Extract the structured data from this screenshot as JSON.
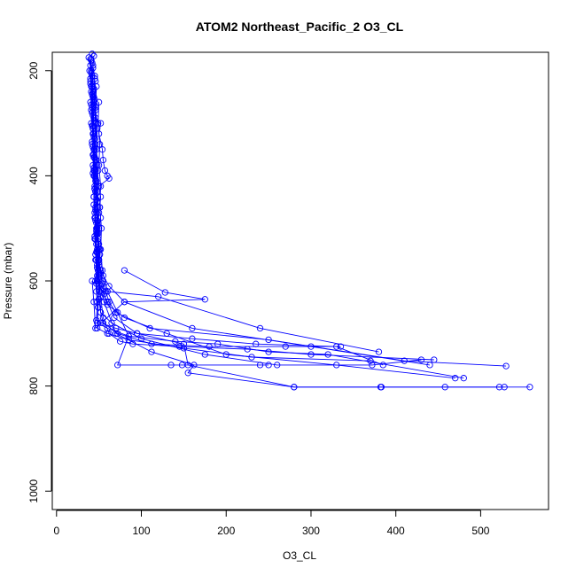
{
  "chart_data": {
    "type": "line",
    "title": "ATOM2 Northeast_Pacific_2 O3_CL",
    "xlabel": "O3_CL",
    "ylabel": "Pressure (mbar)",
    "xlim": [
      -5,
      580
    ],
    "ylim": [
      1035,
      165
    ],
    "y_reversed": true,
    "x_ticks": [
      0,
      100,
      200,
      300,
      400,
      500
    ],
    "y_ticks": [
      200,
      400,
      600,
      800,
      1000
    ],
    "grid": false,
    "legend": "none",
    "color": "#0000ff",
    "series": [
      {
        "points": [
          [
            42,
            168
          ],
          [
            41,
            180
          ],
          [
            39,
            200
          ],
          [
            40,
            220
          ],
          [
            41,
            240
          ],
          [
            40,
            260
          ],
          [
            42,
            280
          ],
          [
            41,
            300
          ],
          [
            43,
            320
          ],
          [
            42,
            340
          ],
          [
            44,
            360
          ],
          [
            43,
            380
          ],
          [
            44,
            400
          ],
          [
            45,
            420
          ],
          [
            44,
            440
          ],
          [
            46,
            460
          ],
          [
            45,
            480
          ],
          [
            47,
            500
          ],
          [
            46,
            520
          ],
          [
            48,
            540
          ],
          [
            50,
            560
          ],
          [
            49,
            580
          ],
          [
            48,
            600
          ],
          [
            52,
            610
          ],
          [
            60,
            620
          ],
          [
            120,
            630
          ],
          [
            240,
            690
          ],
          [
            380,
            735
          ]
        ]
      },
      {
        "points": [
          [
            38,
            175
          ],
          [
            40,
            190
          ],
          [
            42,
            210
          ],
          [
            41,
            230
          ],
          [
            43,
            250
          ],
          [
            42,
            270
          ],
          [
            44,
            290
          ],
          [
            43,
            310
          ],
          [
            45,
            330
          ],
          [
            44,
            350
          ],
          [
            46,
            370
          ],
          [
            45,
            390
          ],
          [
            47,
            410
          ],
          [
            46,
            430
          ],
          [
            48,
            450
          ],
          [
            47,
            470
          ],
          [
            49,
            490
          ],
          [
            48,
            510
          ],
          [
            50,
            530
          ],
          [
            51,
            550
          ],
          [
            50,
            570
          ],
          [
            55,
            590
          ],
          [
            62,
            610
          ],
          [
            80,
            640
          ],
          [
            160,
            690
          ],
          [
            300,
            725
          ],
          [
            440,
            760
          ]
        ]
      },
      {
        "points": [
          [
            44,
            172
          ],
          [
            43,
            195
          ],
          [
            45,
            215
          ],
          [
            44,
            235
          ],
          [
            45,
            255
          ],
          [
            46,
            275
          ],
          [
            45,
            295
          ],
          [
            52,
            300
          ],
          [
            50,
            320
          ],
          [
            54,
            350
          ],
          [
            55,
            370
          ],
          [
            57,
            390
          ],
          [
            60,
            400
          ],
          [
            62,
            405
          ],
          [
            50,
            420
          ],
          [
            52,
            440
          ],
          [
            51,
            460
          ],
          [
            52,
            480
          ],
          [
            50,
            500
          ],
          [
            49,
            520
          ],
          [
            51,
            540
          ],
          [
            50,
            560
          ],
          [
            52,
            580
          ],
          [
            55,
            600
          ],
          [
            58,
            620
          ],
          [
            62,
            640
          ],
          [
            70,
            660
          ],
          [
            110,
            690
          ],
          [
            250,
            712
          ],
          [
            410,
            752
          ],
          [
            530,
            762
          ]
        ]
      },
      {
        "points": [
          [
            40,
            178
          ],
          [
            41,
            205
          ],
          [
            40,
            225
          ],
          [
            42,
            245
          ],
          [
            41,
            265
          ],
          [
            43,
            285
          ],
          [
            42,
            305
          ],
          [
            44,
            325
          ],
          [
            43,
            345
          ],
          [
            45,
            365
          ],
          [
            44,
            385
          ],
          [
            46,
            405
          ],
          [
            45,
            425
          ],
          [
            47,
            445
          ],
          [
            46,
            465
          ],
          [
            48,
            485
          ],
          [
            47,
            505
          ],
          [
            49,
            525
          ],
          [
            48,
            545
          ],
          [
            50,
            565
          ],
          [
            52,
            585
          ],
          [
            54,
            605
          ],
          [
            56,
            625
          ],
          [
            60,
            645
          ],
          [
            80,
            670
          ],
          [
            130,
            700
          ],
          [
            200,
            740
          ],
          [
            330,
            760
          ],
          [
            470,
            785
          ]
        ]
      },
      {
        "points": [
          [
            42,
            185
          ],
          [
            40,
            215
          ],
          [
            42,
            245
          ],
          [
            41,
            275
          ],
          [
            43,
            305
          ],
          [
            42,
            335
          ],
          [
            44,
            365
          ],
          [
            43,
            395
          ],
          [
            45,
            425
          ],
          [
            44,
            455
          ],
          [
            46,
            485
          ],
          [
            45,
            515
          ],
          [
            47,
            545
          ],
          [
            48,
            575
          ],
          [
            47,
            605
          ],
          [
            50,
            635
          ],
          [
            52,
            660
          ],
          [
            65,
            680
          ],
          [
            100,
            710
          ],
          [
            175,
            740
          ],
          [
            260,
            760
          ],
          [
            372,
            760
          ],
          [
            430,
            750
          ]
        ]
      },
      {
        "points": [
          [
            43,
            190
          ],
          [
            42,
            230
          ],
          [
            44,
            270
          ],
          [
            43,
            310
          ],
          [
            45,
            350
          ],
          [
            44,
            390
          ],
          [
            46,
            430
          ],
          [
            45,
            470
          ],
          [
            47,
            510
          ],
          [
            46,
            550
          ],
          [
            48,
            590
          ],
          [
            47,
            620
          ],
          [
            49,
            650
          ],
          [
            48,
            680
          ],
          [
            60,
            690
          ],
          [
            85,
            705
          ],
          [
            140,
            715
          ],
          [
            190,
            720
          ],
          [
            250,
            735
          ],
          [
            320,
            740
          ],
          [
            480,
            785
          ]
        ]
      },
      {
        "points": [
          [
            41,
            200
          ],
          [
            43,
            240
          ],
          [
            42,
            280
          ],
          [
            44,
            320
          ],
          [
            43,
            360
          ],
          [
            45,
            400
          ],
          [
            44,
            440
          ],
          [
            46,
            480
          ],
          [
            45,
            520
          ],
          [
            47,
            560
          ],
          [
            46,
            600
          ],
          [
            48,
            640
          ],
          [
            47,
            675
          ],
          [
            52,
            680
          ],
          [
            70,
            690
          ],
          [
            95,
            700
          ],
          [
            160,
            710
          ],
          [
            235,
            720
          ],
          [
            330,
            725
          ],
          [
            385,
            760
          ]
        ]
      },
      {
        "points": [
          [
            45,
            210
          ],
          [
            44,
            250
          ],
          [
            46,
            290
          ],
          [
            45,
            330
          ],
          [
            47,
            370
          ],
          [
            46,
            410
          ],
          [
            48,
            450
          ],
          [
            47,
            490
          ],
          [
            49,
            530
          ],
          [
            48,
            570
          ],
          [
            50,
            610
          ],
          [
            49,
            650
          ],
          [
            48,
            690
          ],
          [
            60,
            700
          ],
          [
            85,
            712
          ],
          [
            150,
            728
          ],
          [
            230,
            745
          ],
          [
            370,
            752
          ]
        ]
      },
      {
        "points": [
          [
            46,
            220
          ],
          [
            45,
            260
          ],
          [
            47,
            300
          ],
          [
            46,
            340
          ],
          [
            48,
            380
          ],
          [
            47,
            420
          ],
          [
            49,
            460
          ],
          [
            48,
            500
          ],
          [
            50,
            540
          ],
          [
            49,
            580
          ],
          [
            51,
            620
          ],
          [
            52,
            660
          ],
          [
            55,
            680
          ],
          [
            72,
            700
          ],
          [
            112,
            720
          ],
          [
            180,
            725
          ],
          [
            270,
            725
          ],
          [
            335,
            725
          ]
        ]
      },
      {
        "points": [
          [
            47,
            230
          ],
          [
            46,
            270
          ],
          [
            48,
            310
          ],
          [
            47,
            350
          ],
          [
            49,
            390
          ],
          [
            48,
            430
          ],
          [
            50,
            470
          ],
          [
            49,
            510
          ],
          [
            51,
            550
          ],
          [
            50,
            590
          ],
          [
            52,
            630
          ],
          [
            55,
            670
          ],
          [
            62,
            700
          ],
          [
            75,
            715
          ],
          [
            90,
            720
          ],
          [
            145,
            725
          ],
          [
            225,
            730
          ],
          [
            300,
            740
          ],
          [
            445,
            750
          ]
        ]
      },
      {
        "points": [
          [
            50,
            260
          ],
          [
            49,
            300
          ],
          [
            51,
            340
          ],
          [
            50,
            380
          ],
          [
            52,
            420
          ],
          [
            51,
            460
          ],
          [
            53,
            500
          ],
          [
            52,
            540
          ],
          [
            54,
            580
          ],
          [
            60,
            620
          ],
          [
            72,
            660
          ],
          [
            85,
            705
          ],
          [
            72,
            760
          ],
          [
            135,
            760
          ],
          [
            148,
            760
          ],
          [
            240,
            760
          ],
          [
            250,
            760
          ]
        ]
      },
      {
        "points": [
          [
            48,
            500
          ],
          [
            47,
            530
          ],
          [
            49,
            560
          ],
          [
            48,
            600
          ],
          [
            60,
            640
          ],
          [
            68,
            670
          ],
          [
            95,
            700
          ],
          [
            150,
            720
          ],
          [
            155,
            760
          ],
          [
            280,
            802
          ],
          [
            383,
            802
          ],
          [
            458,
            802
          ],
          [
            522,
            802
          ],
          [
            558,
            802
          ]
        ]
      },
      {
        "points": [
          [
            46,
            560
          ],
          [
            50,
            600
          ],
          [
            56,
            640
          ],
          [
            70,
            700
          ],
          [
            112,
            735
          ],
          [
            162,
            760
          ],
          [
            155,
            775
          ],
          [
            280,
            802
          ],
          [
            382,
            802
          ],
          [
            528,
            802
          ]
        ]
      },
      {
        "points": [
          [
            42,
            600
          ],
          [
            44,
            640
          ],
          [
            46,
            690
          ],
          [
            80,
            640
          ],
          [
            175,
            635
          ],
          [
            128,
            622
          ],
          [
            80,
            580
          ]
        ]
      }
    ]
  }
}
